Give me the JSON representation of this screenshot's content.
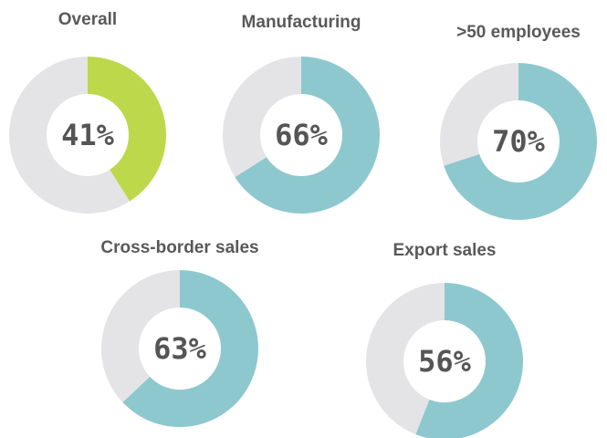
{
  "chart_data": [
    {
      "type": "donut",
      "title": "Overall",
      "values": [
        41,
        59
      ],
      "value_labels": [
        "41%",
        null
      ],
      "colors": [
        "#bdd84a",
        "#e4e4e6"
      ]
    },
    {
      "type": "donut",
      "title": "Manufacturing",
      "values": [
        66,
        34
      ],
      "value_labels": [
        "66%",
        null
      ],
      "colors": [
        "#8ec8cf",
        "#e4e4e6"
      ]
    },
    {
      "type": "donut",
      "title": ">50 employees",
      "values": [
        70,
        30
      ],
      "value_labels": [
        "70%",
        null
      ],
      "colors": [
        "#8ec8cf",
        "#e4e4e6"
      ]
    },
    {
      "type": "donut",
      "title": "Cross-border sales",
      "values": [
        63,
        37
      ],
      "value_labels": [
        "63%",
        null
      ],
      "colors": [
        "#8ec8cf",
        "#e4e4e6"
      ]
    },
    {
      "type": "donut",
      "title": "Export sales",
      "values": [
        56,
        44
      ],
      "value_labels": [
        "56%",
        null
      ],
      "colors": [
        "#8ec8cf",
        "#e4e4e6"
      ]
    }
  ]
}
